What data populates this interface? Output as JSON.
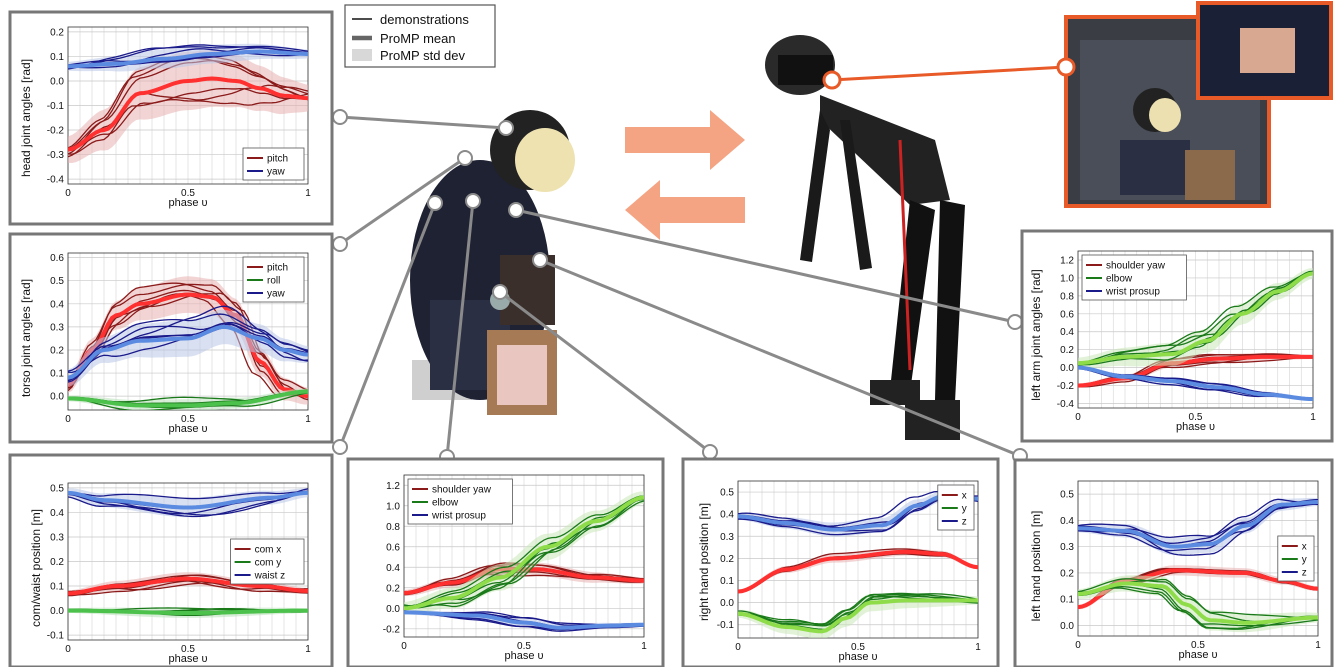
{
  "key": {
    "items": [
      {
        "label": "demonstrations",
        "style": "demo"
      },
      {
        "label": "ProMP mean",
        "style": "mean"
      },
      {
        "label": "ProMP std dev",
        "style": "std"
      }
    ]
  },
  "chart_data": [
    {
      "id": "head",
      "type": "line",
      "ylabel": "head joint angles [rad]",
      "xlabel": "phase υ",
      "xlim": [
        0,
        1
      ],
      "ylim": [
        -0.42,
        0.22
      ],
      "yticks": [
        0.2,
        0.1,
        0.0,
        -0.1,
        -0.2,
        -0.3,
        -0.4
      ],
      "yticklabels": [
        "0.2",
        "0.1",
        "0.0",
        "-0.1",
        "-0.2",
        "-0.3",
        "-0.4"
      ],
      "xticks": [
        0,
        0.5,
        1
      ],
      "xticklabels": [
        "0",
        "0.5",
        "1"
      ],
      "legend": "bottom-right",
      "grid": true,
      "series": [
        {
          "name": "pitch",
          "color": "#8b1a1a",
          "meanColor": "#ff3030",
          "stdColor": "#e8b0b0",
          "mean": [
            [
              0,
              -0.28
            ],
            [
              0.15,
              -0.2
            ],
            [
              0.3,
              -0.05
            ],
            [
              0.5,
              0.0
            ],
            [
              0.6,
              0.01
            ],
            [
              0.7,
              0.0
            ],
            [
              0.8,
              -0.03
            ],
            [
              0.9,
              -0.06
            ],
            [
              1,
              -0.07
            ]
          ],
          "std": 0.09,
          "demos": 6
        },
        {
          "name": "yaw",
          "color": "#1a1a8b",
          "meanColor": "#5b8be0",
          "stdColor": "#b8c6e8",
          "mean": [
            [
              0,
              0.06
            ],
            [
              0.2,
              0.07
            ],
            [
              0.4,
              0.09
            ],
            [
              0.6,
              0.11
            ],
            [
              0.8,
              0.12
            ],
            [
              1,
              0.11
            ]
          ],
          "std": 0.03,
          "demos": 6
        }
      ]
    },
    {
      "id": "torso",
      "type": "line",
      "ylabel": "torso joint angles [rad]",
      "xlabel": "phase υ",
      "xlim": [
        0,
        1
      ],
      "ylim": [
        -0.06,
        0.62
      ],
      "yticks": [
        0.6,
        0.5,
        0.4,
        0.3,
        0.2,
        0.1,
        0.0
      ],
      "yticklabels": [
        "0.6",
        "0.5",
        "0.4",
        "0.3",
        "0.2",
        "0.1",
        "0.0"
      ],
      "xticks": [
        0,
        0.5,
        1
      ],
      "xticklabels": [
        "0",
        "0.5",
        "1"
      ],
      "legend": "top-right",
      "grid": true,
      "series": [
        {
          "name": "pitch",
          "color": "#8b1a1a",
          "meanColor": "#ff3030",
          "stdColor": "#e8b0b0",
          "mean": [
            [
              0,
              0.05
            ],
            [
              0.1,
              0.2
            ],
            [
              0.2,
              0.35
            ],
            [
              0.3,
              0.4
            ],
            [
              0.5,
              0.44
            ],
            [
              0.6,
              0.43
            ],
            [
              0.7,
              0.35
            ],
            [
              0.8,
              0.15
            ],
            [
              0.9,
              0.03
            ],
            [
              1,
              0.0
            ]
          ],
          "std": 0.06,
          "demos": 6
        },
        {
          "name": "roll",
          "color": "#1a7a1a",
          "meanColor": "#4cc24c",
          "stdColor": "#b8e0b8",
          "mean": [
            [
              0,
              -0.01
            ],
            [
              0.3,
              -0.04
            ],
            [
              0.5,
              -0.04
            ],
            [
              0.7,
              -0.03
            ],
            [
              1,
              0.02
            ]
          ],
          "std": 0.02,
          "demos": 5
        },
        {
          "name": "yaw",
          "color": "#1a1a8b",
          "meanColor": "#5b8be0",
          "stdColor": "#b8c6e8",
          "mean": [
            [
              0,
              0.08
            ],
            [
              0.15,
              0.2
            ],
            [
              0.3,
              0.24
            ],
            [
              0.5,
              0.25
            ],
            [
              0.65,
              0.3
            ],
            [
              0.8,
              0.25
            ],
            [
              0.9,
              0.2
            ],
            [
              1,
              0.18
            ]
          ],
          "std": 0.06,
          "demos": 6
        }
      ]
    },
    {
      "id": "com",
      "type": "line",
      "ylabel": "com/waist position [m]",
      "xlabel": "phase υ",
      "xlim": [
        0,
        1
      ],
      "ylim": [
        -0.12,
        0.52
      ],
      "yticks": [
        0.5,
        0.4,
        0.3,
        0.2,
        0.1,
        0.0,
        -0.1
      ],
      "yticklabels": [
        "0.5",
        "0.4",
        "0.3",
        "0.2",
        "0.1",
        "0.0",
        "-0.1"
      ],
      "xticks": [
        0,
        0.5,
        1
      ],
      "xticklabels": [
        "0",
        "0.5",
        "1"
      ],
      "legend": "center-right",
      "grid": true,
      "series": [
        {
          "name": "com x",
          "color": "#8b1a1a",
          "meanColor": "#ff3030",
          "stdColor": "#e8b0b0",
          "mean": [
            [
              0,
              0.07
            ],
            [
              0.2,
              0.1
            ],
            [
              0.5,
              0.13
            ],
            [
              0.8,
              0.1
            ],
            [
              1,
              0.08
            ]
          ],
          "std": 0.02,
          "demos": 6
        },
        {
          "name": "com y",
          "color": "#1a7a1a",
          "meanColor": "#4cc24c",
          "stdColor": "#b8e0b8",
          "mean": [
            [
              0,
              0.0
            ],
            [
              0.5,
              -0.01
            ],
            [
              1,
              0.0
            ]
          ],
          "std": 0.015,
          "demos": 5
        },
        {
          "name": "waist z",
          "color": "#1a1a8b",
          "meanColor": "#5b8be0",
          "stdColor": "#b8c6e8",
          "mean": [
            [
              0,
              0.48
            ],
            [
              0.15,
              0.45
            ],
            [
              0.5,
              0.42
            ],
            [
              0.85,
              0.46
            ],
            [
              1,
              0.48
            ]
          ],
          "std": 0.03,
          "demos": 6
        }
      ]
    },
    {
      "id": "rarm",
      "type": "line",
      "ylabel": "",
      "xlabel": "phase υ",
      "xlim": [
        0,
        1
      ],
      "ylim": [
        -0.28,
        1.3
      ],
      "yticks": [
        1.2,
        1.0,
        0.8,
        0.6,
        0.4,
        0.2,
        0.0,
        -0.2
      ],
      "yticklabels": [
        "1.2",
        "1.0",
        "0.8",
        "0.6",
        "0.4",
        "0.2",
        "0.0",
        "-0.2"
      ],
      "xticks": [
        0,
        0.5,
        1
      ],
      "xticklabels": [
        "0",
        "0.5",
        "1"
      ],
      "legend": "top-left",
      "grid": true,
      "series": [
        {
          "name": "shoulder yaw",
          "color": "#8b1a1a",
          "meanColor": "#ff3030",
          "stdColor": "#e8b0b0",
          "mean": [
            [
              0,
              0.15
            ],
            [
              0.2,
              0.25
            ],
            [
              0.4,
              0.38
            ],
            [
              0.55,
              0.38
            ],
            [
              0.8,
              0.3
            ],
            [
              1,
              0.27
            ]
          ],
          "std": 0.05,
          "demos": 6
        },
        {
          "name": "elbow",
          "color": "#1a7a1a",
          "meanColor": "#8edc4a",
          "stdColor": "#c8e8b8",
          "mean": [
            [
              0,
              0.0
            ],
            [
              0.2,
              0.1
            ],
            [
              0.4,
              0.3
            ],
            [
              0.6,
              0.6
            ],
            [
              0.8,
              0.85
            ],
            [
              1,
              1.08
            ]
          ],
          "std": 0.1,
          "demos": 6
        },
        {
          "name": "wrist prosup",
          "color": "#1a1a8b",
          "meanColor": "#5b8be0",
          "stdColor": "#b8c6e8",
          "mean": [
            [
              0,
              -0.04
            ],
            [
              0.3,
              -0.07
            ],
            [
              0.5,
              -0.14
            ],
            [
              0.65,
              -0.19
            ],
            [
              0.85,
              -0.17
            ],
            [
              1,
              -0.16
            ]
          ],
          "std": 0.03,
          "demos": 6
        }
      ]
    },
    {
      "id": "rhand",
      "type": "line",
      "ylabel": "right hand position [m]",
      "xlabel": "phase υ",
      "xlim": [
        0,
        1
      ],
      "ylim": [
        -0.16,
        0.55
      ],
      "yticks": [
        0.5,
        0.4,
        0.3,
        0.2,
        0.1,
        0.0,
        -0.1
      ],
      "yticklabels": [
        "0.5",
        "0.4",
        "0.3",
        "0.2",
        "0.1",
        "0.0",
        "-0.1"
      ],
      "xticks": [
        0,
        0.5,
        1
      ],
      "xticklabels": [
        "0",
        "0.5",
        "1"
      ],
      "legend": "top-right",
      "grid": true,
      "series": [
        {
          "name": "x",
          "color": "#8b1a1a",
          "meanColor": "#ff3030",
          "stdColor": "#e8b0b0",
          "mean": [
            [
              0,
              0.05
            ],
            [
              0.2,
              0.15
            ],
            [
              0.4,
              0.2
            ],
            [
              0.7,
              0.23
            ],
            [
              0.85,
              0.22
            ],
            [
              1,
              0.16
            ]
          ],
          "std": 0.015,
          "demos": 6
        },
        {
          "name": "y",
          "color": "#1a7a1a",
          "meanColor": "#8edc4a",
          "stdColor": "#c8e8b8",
          "mean": [
            [
              0,
              -0.05
            ],
            [
              0.2,
              -0.11
            ],
            [
              0.35,
              -0.13
            ],
            [
              0.45,
              -0.07
            ],
            [
              0.55,
              0.0
            ],
            [
              0.7,
              0.01
            ],
            [
              1,
              0.01
            ]
          ],
          "std": 0.03,
          "demos": 5
        },
        {
          "name": "z",
          "color": "#1a1a8b",
          "meanColor": "#5b8be0",
          "stdColor": "#b8c6e8",
          "mean": [
            [
              0,
              0.39
            ],
            [
              0.2,
              0.36
            ],
            [
              0.4,
              0.33
            ],
            [
              0.6,
              0.35
            ],
            [
              0.75,
              0.44
            ],
            [
              0.85,
              0.48
            ],
            [
              1,
              0.47
            ]
          ],
          "std": 0.025,
          "demos": 6
        }
      ]
    },
    {
      "id": "larm",
      "type": "line",
      "ylabel": "left arm joint angles [rad]",
      "xlabel": "phase υ",
      "xlim": [
        0,
        1
      ],
      "ylim": [
        -0.45,
        1.3
      ],
      "yticks": [
        1.2,
        1.0,
        0.8,
        0.6,
        0.4,
        0.2,
        0.0,
        -0.2,
        -0.4
      ],
      "yticklabels": [
        "1.2",
        "1.0",
        "0.8",
        "0.6",
        "0.4",
        "0.2",
        "0.0",
        "-0.2",
        "-0.4"
      ],
      "xticks": [
        0,
        0.5,
        1
      ],
      "xticklabels": [
        "0",
        "0.5",
        "1"
      ],
      "legend": "top-left",
      "grid": true,
      "series": [
        {
          "name": "shoulder yaw",
          "color": "#8b1a1a",
          "meanColor": "#ff3030",
          "stdColor": "#e8b0b0",
          "mean": [
            [
              0,
              -0.2
            ],
            [
              0.2,
              -0.12
            ],
            [
              0.4,
              0.05
            ],
            [
              0.6,
              0.1
            ],
            [
              0.8,
              0.12
            ],
            [
              1,
              0.12
            ]
          ],
          "std": 0.04,
          "demos": 6
        },
        {
          "name": "elbow",
          "color": "#1a7a1a",
          "meanColor": "#8edc4a",
          "stdColor": "#c8e8b8",
          "mean": [
            [
              0,
              0.05
            ],
            [
              0.2,
              0.12
            ],
            [
              0.4,
              0.15
            ],
            [
              0.55,
              0.3
            ],
            [
              0.7,
              0.6
            ],
            [
              0.85,
              0.85
            ],
            [
              1,
              1.05
            ]
          ],
          "std": 0.1,
          "demos": 6
        },
        {
          "name": "wrist prosup",
          "color": "#1a1a8b",
          "meanColor": "#5b8be0",
          "stdColor": "#b8c6e8",
          "mean": [
            [
              0,
              0.0
            ],
            [
              0.2,
              -0.1
            ],
            [
              0.4,
              -0.15
            ],
            [
              0.6,
              -0.22
            ],
            [
              0.8,
              -0.3
            ],
            [
              1,
              -0.35
            ]
          ],
          "std": 0.03,
          "demos": 6
        }
      ]
    },
    {
      "id": "lhand",
      "type": "line",
      "ylabel": "left hand position [m]",
      "xlabel": "phase υ",
      "xlim": [
        0,
        1
      ],
      "ylim": [
        -0.04,
        0.55
      ],
      "yticks": [
        0.5,
        0.4,
        0.3,
        0.2,
        0.1,
        0.0
      ],
      "yticklabels": [
        "0.5",
        "0.4",
        "0.3",
        "0.2",
        "0.1",
        "0.0"
      ],
      "xticks": [
        0,
        0.5,
        1
      ],
      "xticklabels": [
        "0",
        "0.5",
        "1"
      ],
      "legend": "center-right",
      "grid": true,
      "series": [
        {
          "name": "x",
          "color": "#8b1a1a",
          "meanColor": "#ff3030",
          "stdColor": "#e8b0b0",
          "mean": [
            [
              0,
              0.07
            ],
            [
              0.2,
              0.17
            ],
            [
              0.4,
              0.21
            ],
            [
              0.7,
              0.2
            ],
            [
              0.85,
              0.17
            ],
            [
              1,
              0.14
            ]
          ],
          "std": 0.015,
          "demos": 6
        },
        {
          "name": "y",
          "color": "#1a7a1a",
          "meanColor": "#8edc4a",
          "stdColor": "#c8e8b8",
          "mean": [
            [
              0,
              0.12
            ],
            [
              0.2,
              0.16
            ],
            [
              0.35,
              0.15
            ],
            [
              0.45,
              0.08
            ],
            [
              0.55,
              0.02
            ],
            [
              0.7,
              0.01
            ],
            [
              1,
              0.03
            ]
          ],
          "std": 0.03,
          "demos": 5
        },
        {
          "name": "z",
          "color": "#1a1a8b",
          "meanColor": "#5b8be0",
          "stdColor": "#b8c6e8",
          "mean": [
            [
              0,
              0.37
            ],
            [
              0.2,
              0.36
            ],
            [
              0.4,
              0.3
            ],
            [
              0.55,
              0.31
            ],
            [
              0.7,
              0.38
            ],
            [
              0.85,
              0.46
            ],
            [
              1,
              0.47
            ]
          ],
          "std": 0.025,
          "demos": 6
        }
      ]
    }
  ]
}
